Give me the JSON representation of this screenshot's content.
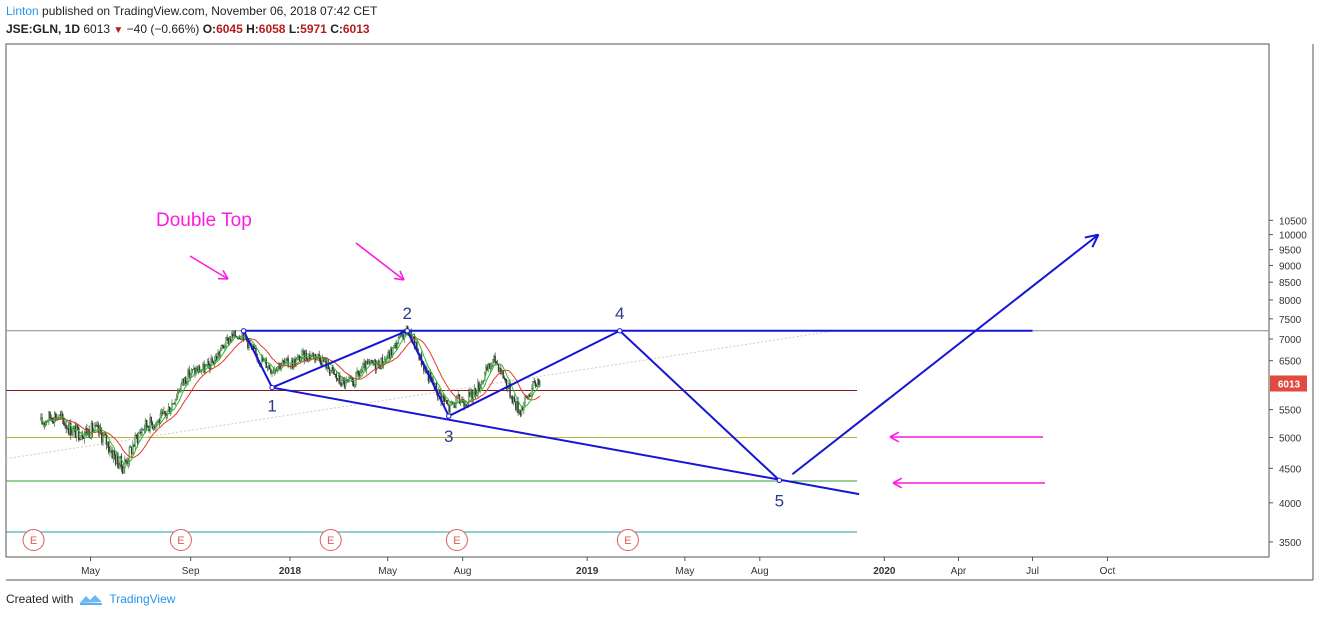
{
  "header": {
    "author": "Linton",
    "published": "published on TradingView.com, November 06, 2018 07:42 CET",
    "symbol": "JSE:GLN, 1D",
    "last": "6013",
    "change": "−40 (−0.66%)",
    "o_label": "O:",
    "o": "6045",
    "h_label": "H:",
    "h": "6058",
    "l_label": "L:",
    "l": "5971",
    "c_label": "C:",
    "c": "6013"
  },
  "footer": {
    "created_with": "Created with",
    "brand": "TradingView"
  },
  "colors": {
    "pattern": "#1515d6",
    "annotation": "#ff1ae0",
    "red_line": "#8b1a1a",
    "olive_line": "#b5b53a",
    "green_line": "#2e9e2e",
    "cyan_line": "#1aa3a3",
    "price_tag": "#e04a3f"
  },
  "chart_data": {
    "type": "candlestick",
    "ylim": [
      3300,
      10850
    ],
    "y_ticks": [
      "10500",
      "10000",
      "9500",
      "9000",
      "8500",
      "8000",
      "7500",
      "7000",
      "6500",
      "6013",
      "5500",
      "5000",
      "4500",
      "4000",
      "3500"
    ],
    "x_ticks": [
      {
        "label": "May",
        "date": "2017-05"
      },
      {
        "label": "Sep",
        "date": "2017-09"
      },
      {
        "label": "2018",
        "date": "2018-01"
      },
      {
        "label": "May",
        "date": "2018-05"
      },
      {
        "label": "Aug",
        "date": "2018-08"
      },
      {
        "label": "2019",
        "date": "2019-01"
      },
      {
        "label": "May",
        "date": "2019-05"
      },
      {
        "label": "Aug",
        "date": "2019-08"
      },
      {
        "label": "2020",
        "date": "2020-01"
      },
      {
        "label": "Apr",
        "date": "2020-04"
      },
      {
        "label": "Jul",
        "date": "2020-07"
      },
      {
        "label": "Oct",
        "date": "2020-10"
      }
    ],
    "current_price": 6013,
    "price_path": [
      {
        "date": "2017-03-01",
        "price": 5300
      },
      {
        "date": "2017-04-20",
        "price": 5200
      },
      {
        "date": "2017-06-10",
        "price": 4650
      },
      {
        "date": "2017-07-20",
        "price": 5300
      },
      {
        "date": "2017-09-10",
        "price": 6300
      },
      {
        "date": "2017-11-05",
        "price": 7150
      },
      {
        "date": "2017-12-10",
        "price": 6200
      },
      {
        "date": "2018-01-15",
        "price": 6700
      },
      {
        "date": "2018-03-20",
        "price": 6000
      },
      {
        "date": "2018-05-25",
        "price": 7100
      },
      {
        "date": "2018-06-20",
        "price": 6300
      },
      {
        "date": "2018-07-15",
        "price": 5400
      },
      {
        "date": "2018-09-10",
        "price": 6400
      },
      {
        "date": "2018-10-10",
        "price": 5600
      },
      {
        "date": "2018-11-05",
        "price": 6013
      }
    ],
    "horizontal_levels": [
      {
        "price": 7200,
        "color": "gray"
      },
      {
        "price": 5870,
        "color": "red"
      },
      {
        "price": 5000,
        "color": "olive"
      },
      {
        "price": 4310,
        "color": "green"
      },
      {
        "price": 3620,
        "color": "cyan"
      }
    ],
    "earnings_markers": [
      "E",
      "E",
      "E",
      "E",
      "E"
    ],
    "earnings_dates": [
      "2017-02-20",
      "2017-08-20",
      "2018-02-20",
      "2018-07-25",
      "2019-02-20"
    ],
    "wave_points": [
      {
        "label": "1",
        "date": "2017-12-10",
        "price": 5930
      },
      {
        "label": "2",
        "date": "2018-05-25",
        "price": 7200
      },
      {
        "label": "3",
        "date": "2018-07-15",
        "price": 5380
      },
      {
        "label": "4",
        "date": "2019-02-10",
        "price": 7200
      },
      {
        "label": "5",
        "date": "2019-08-25",
        "price": 4320
      }
    ],
    "double_top_label": "Double Top"
  }
}
